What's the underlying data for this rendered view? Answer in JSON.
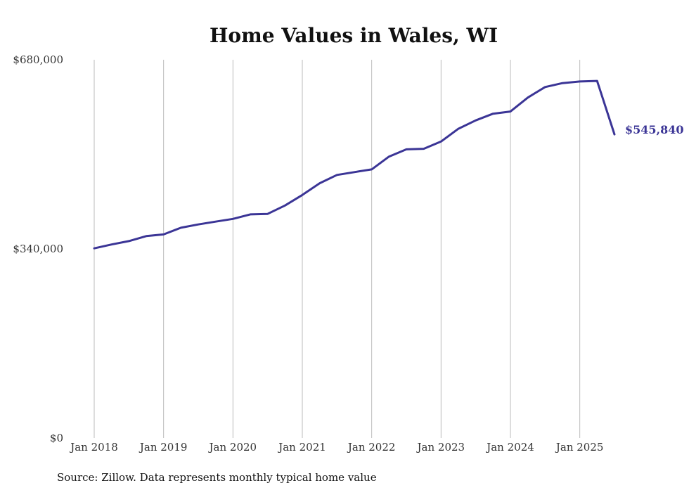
{
  "chart_data": {
    "type": "line",
    "title": "Home Values in Wales, WI",
    "subtitle": "",
    "xlabel": "",
    "ylabel": "",
    "ylim": [
      0,
      680000
    ],
    "y_ticks": [
      0,
      340000,
      680000
    ],
    "y_tick_labels": [
      "$0",
      "$340,000",
      "$680,000"
    ],
    "x_range": [
      "2018-01",
      "2025-07"
    ],
    "x_ticks": [
      "2018-01",
      "2019-01",
      "2020-01",
      "2021-01",
      "2022-01",
      "2023-01",
      "2024-01",
      "2025-01"
    ],
    "x_tick_labels": [
      "Jan 2018",
      "Jan 2019",
      "Jan 2020",
      "Jan 2021",
      "Jan 2022",
      "Jan 2023",
      "Jan 2024",
      "Jan 2025"
    ],
    "grid": "vertical lines at x ticks",
    "legend": "none",
    "end_label": "$545,840",
    "source": "Source: Zillow. Data represents monthly typical home value",
    "line_color": "#3b3596",
    "series": [
      {
        "name": "",
        "x": [
          "2018-01",
          "2018-04",
          "2018-07",
          "2018-10",
          "2019-01",
          "2019-04",
          "2019-07",
          "2019-10",
          "2020-01",
          "2020-04",
          "2020-07",
          "2020-10",
          "2021-01",
          "2021-04",
          "2021-07",
          "2021-10",
          "2022-01",
          "2022-04",
          "2022-07",
          "2022-10",
          "2023-01",
          "2023-04",
          "2023-07",
          "2023-10",
          "2024-01",
          "2024-04",
          "2024-07",
          "2024-10",
          "2025-01",
          "2025-04",
          "2025-07"
        ],
        "values": [
          341000,
          348000,
          354000,
          363000,
          366000,
          378000,
          384000,
          389000,
          394000,
          402000,
          403000,
          418000,
          437000,
          458000,
          473000,
          478000,
          483000,
          506000,
          519000,
          520000,
          533000,
          556000,
          571000,
          583000,
          587000,
          612000,
          631000,
          638000,
          641000,
          642000,
          545840
        ]
      }
    ]
  }
}
